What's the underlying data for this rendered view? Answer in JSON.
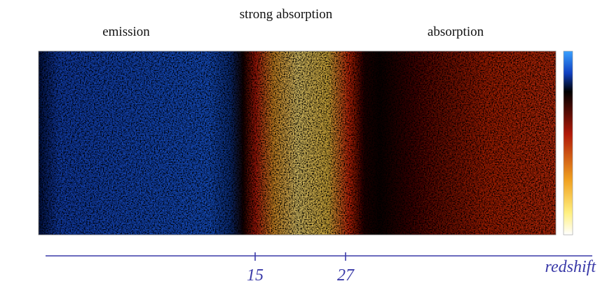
{
  "header": {
    "emission": "emission",
    "strong_absorption": "strong absorption",
    "absorption": "absorption"
  },
  "redshift_axis": {
    "label": "redshift",
    "ticks": [
      "15",
      "27"
    ]
  }
}
